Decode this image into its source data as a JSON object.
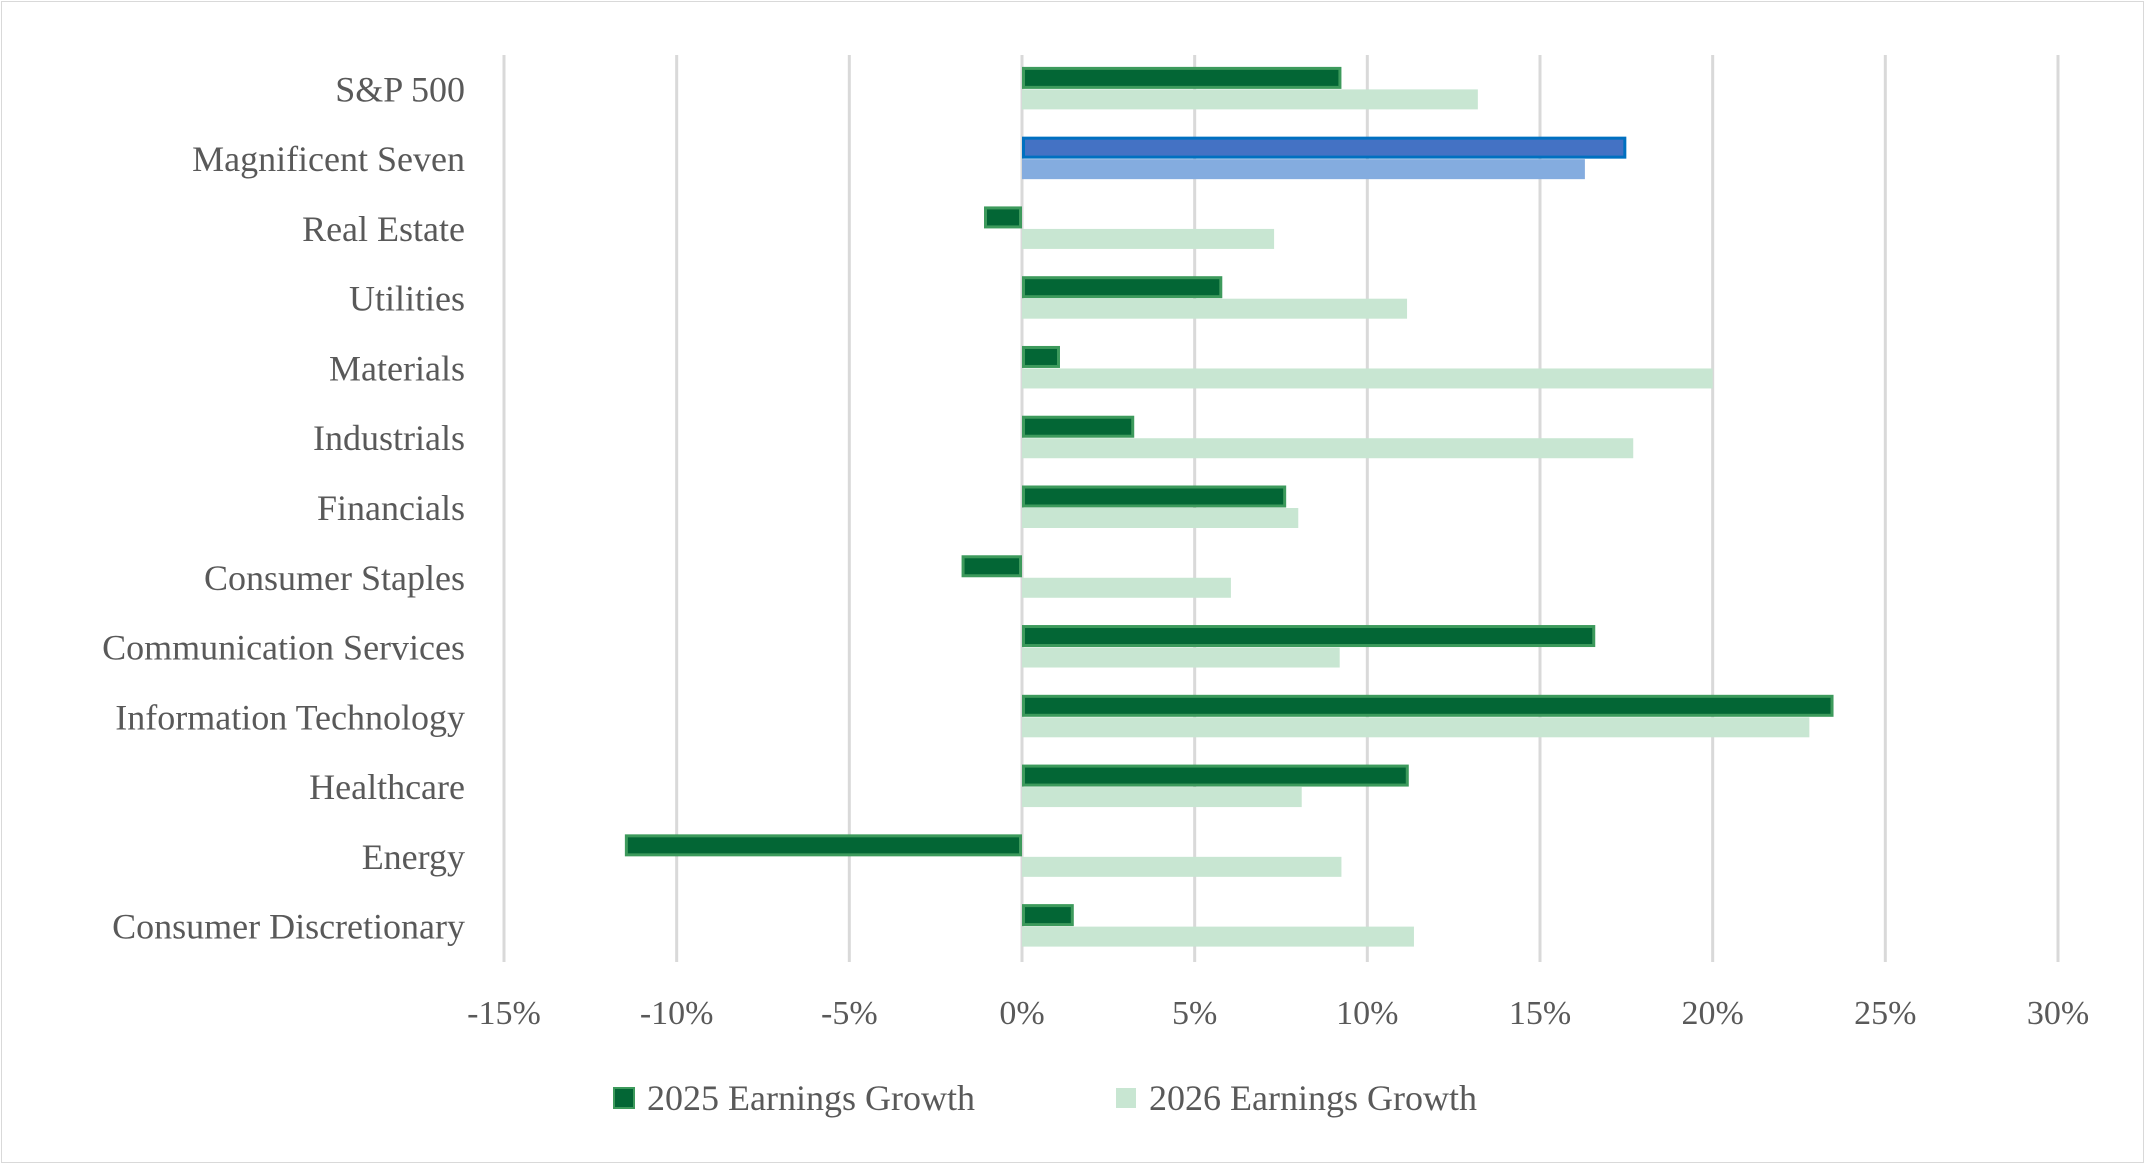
{
  "chart_data": {
    "type": "bar",
    "orientation": "horizontal",
    "categories": [
      "S&P 500",
      "Magnificent Seven",
      "Real Estate",
      "Utilities",
      "Materials",
      "Industrials",
      "Financials",
      "Consumer Staples",
      "Communication Services",
      "Information Technology",
      "Healthcare",
      "Energy",
      "Consumer Discretionary"
    ],
    "series": [
      {
        "name": "2025 Earnings Growth",
        "color": "#036635",
        "border": "#3d9a5c",
        "values": [
          9.25,
          17.5,
          -1.1,
          5.8,
          1.1,
          3.25,
          7.65,
          -1.75,
          16.6,
          23.5,
          11.2,
          -11.5,
          1.5
        ]
      },
      {
        "name": "2026 Earnings Growth",
        "color": "#c8e6d2",
        "values": [
          13.2,
          16.3,
          7.3,
          11.15,
          20.0,
          17.7,
          8.0,
          6.05,
          9.2,
          22.8,
          8.1,
          9.25,
          11.35
        ]
      }
    ],
    "highlight": {
      "category": "Magnificent Seven",
      "colors": [
        "#4472c4",
        "#84acdf"
      ],
      "border": "#0070c0"
    },
    "xlim": [
      -15,
      30
    ],
    "xticks": [
      "-15%",
      "-10%",
      "-5%",
      "0%",
      "5%",
      "10%",
      "15%",
      "20%",
      "25%",
      "30%"
    ],
    "grid": true,
    "legend": "bottom",
    "title": "",
    "xlabel": "",
    "ylabel": ""
  }
}
